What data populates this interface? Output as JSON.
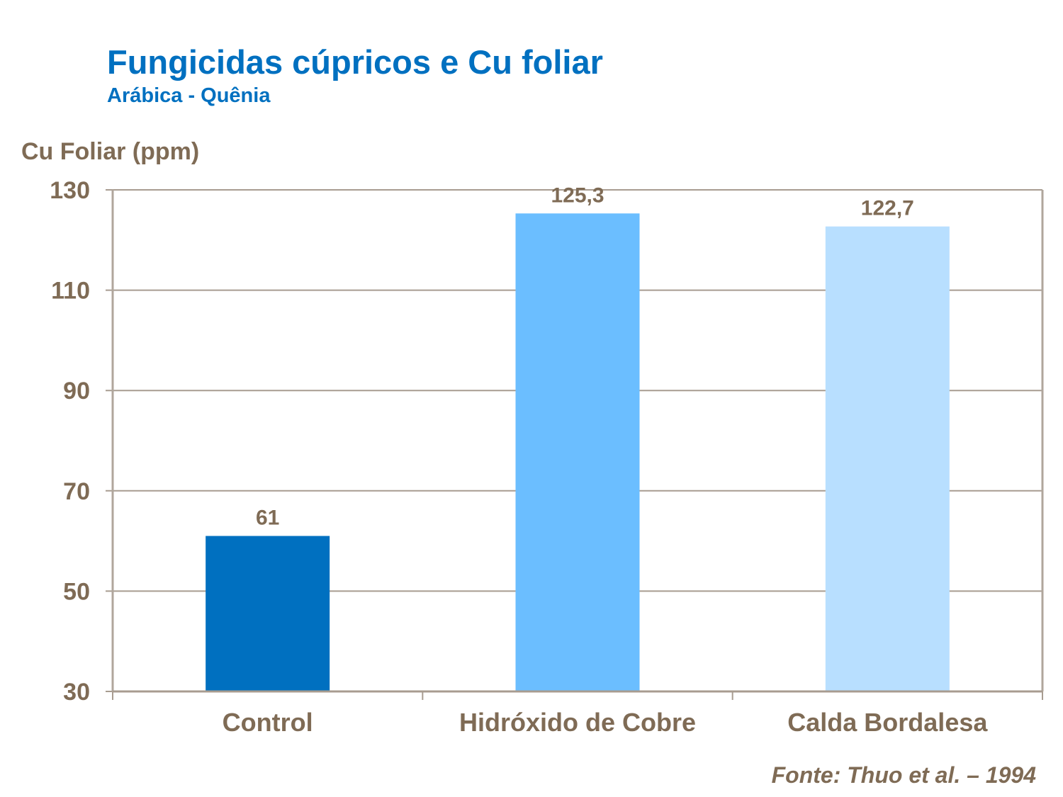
{
  "chart_data": {
    "type": "bar",
    "title": "Fungicidas cúpricos e Cu foliar",
    "subtitle": "Arábica - Quênia",
    "ylabel": "Cu Foliar (ppm)",
    "xlabel": "",
    "categories": [
      "Control",
      "Hidróxido de Cobre",
      "Calda Bordalesa"
    ],
    "values": [
      61,
      125.3,
      122.7
    ],
    "data_labels": [
      "61",
      "125,3",
      "122,7"
    ],
    "bar_colors": [
      "#0070C0",
      "#6BBEFF",
      "#B8DFFF"
    ],
    "ylim": [
      30,
      130
    ],
    "yticks": [
      30,
      50,
      70,
      90,
      110,
      130
    ],
    "grid": true,
    "legend": "none",
    "source": "Fonte: Thuo et al. – 1994",
    "text_color": "#7F6B55",
    "title_color": "#0070C0"
  }
}
